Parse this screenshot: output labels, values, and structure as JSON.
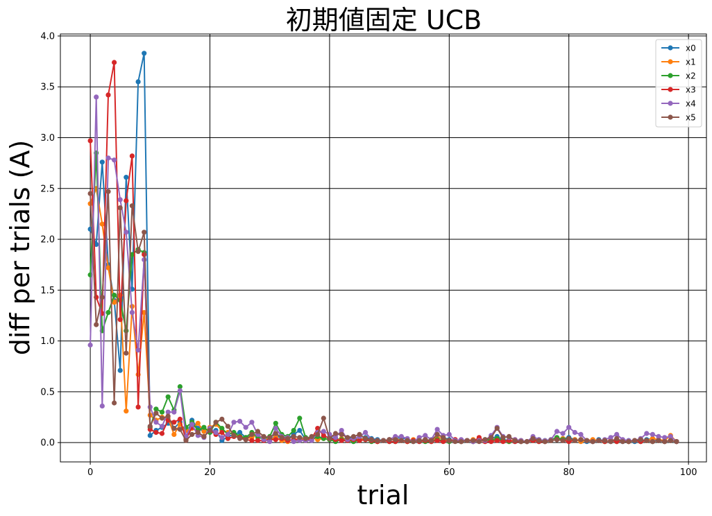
{
  "chart_data": {
    "type": "line",
    "title": "初期値固定 UCB",
    "xlabel": "trial",
    "ylabel": "diff  per  trials (A)",
    "xlim": [
      -5,
      103
    ],
    "ylim": [
      -0.19,
      4.02
    ],
    "xticks": [
      0,
      20,
      40,
      60,
      80,
      100
    ],
    "xtick_labels": [
      "0",
      "20",
      "40",
      "60",
      "80",
      "100"
    ],
    "yticks": [
      0.0,
      0.5,
      1.0,
      1.5,
      2.0,
      2.5,
      3.0,
      3.5,
      4.0
    ],
    "ytick_labels": [
      "0.0",
      "0.5",
      "1.0",
      "1.5",
      "2.0",
      "2.5",
      "3.0",
      "3.5",
      "4.0"
    ],
    "grid": true,
    "legend_position": "top-right",
    "marker": "circle",
    "series": [
      {
        "name": "x0",
        "color": "#1f77b4",
        "values": [
          2.1,
          1.95,
          2.76,
          1.75,
          1.4,
          0.71,
          2.61,
          1.51,
          3.55,
          3.83,
          0.07,
          0.12,
          0.15,
          0.19,
          0.14,
          0.2,
          0.05,
          0.22,
          0.14,
          0.11,
          0.1,
          0.12,
          0.02,
          0.06,
          0.08,
          0.1,
          0.05,
          0.06,
          0.07,
          0.04,
          0.03,
          0.06,
          0.05,
          0.04,
          0.08,
          0.12,
          0.03,
          0.05,
          0.04,
          0.06,
          0.05,
          0.04,
          0.03,
          0.05,
          0.04,
          0.03,
          0.05,
          0.04,
          0.03,
          0.02,
          0.03,
          0.04,
          0.05,
          0.03,
          0.02,
          0.01,
          0.03,
          0.02,
          0.04,
          0.05,
          0.03,
          0.02,
          0.01,
          0.02,
          0.01,
          0.02,
          0.03,
          0.04,
          0.06,
          0.03,
          0.02,
          0.01,
          0.02,
          0.01,
          0.02,
          0.03,
          0.01,
          0.02,
          0.03,
          0.04,
          0.05,
          0.03,
          0.02,
          0.01,
          0.02,
          0.03,
          0.02,
          0.01,
          0.02,
          0.01,
          0.02,
          0.01,
          0.02,
          0.03,
          0.04,
          0.02,
          0.01,
          0.02,
          0.01
        ]
      },
      {
        "name": "x1",
        "color": "#ff7f0e",
        "values": [
          2.35,
          2.5,
          2.15,
          1.72,
          1.38,
          1.45,
          0.31,
          1.34,
          0.67,
          1.28,
          0.27,
          0.22,
          0.25,
          0.24,
          0.08,
          0.18,
          0.12,
          0.14,
          0.19,
          0.11,
          0.15,
          0.18,
          0.12,
          0.1,
          0.08,
          0.06,
          0.04,
          0.05,
          0.08,
          0.04,
          0.03,
          0.05,
          0.02,
          0.01,
          0.03,
          0.04,
          0.02,
          0.05,
          0.03,
          0.04,
          0.03,
          0.02,
          0.04,
          0.03,
          0.02,
          0.03,
          0.04,
          0.02,
          0.01,
          0.02,
          0.03,
          0.04,
          0.02,
          0.01,
          0.03,
          0.02,
          0.03,
          0.02,
          0.05,
          0.04,
          0.02,
          0.03,
          0.01,
          0.02,
          0.03,
          0.02,
          0.01,
          0.03,
          0.04,
          0.02,
          0.01,
          0.03,
          0.02,
          0.01,
          0.03,
          0.02,
          0.01,
          0.02,
          0.03,
          0.04,
          0.02,
          0.03,
          0.01,
          0.02,
          0.03,
          0.02,
          0.01,
          0.02,
          0.03,
          0.02,
          0.01,
          0.02,
          0.03,
          0.02,
          0.04,
          0.03,
          0.02,
          0.07,
          0.01
        ]
      },
      {
        "name": "x2",
        "color": "#2ca02c",
        "values": [
          1.65,
          2.85,
          1.1,
          1.28,
          1.45,
          1.4,
          1.1,
          1.85,
          1.9,
          1.87,
          0.15,
          0.33,
          0.3,
          0.45,
          0.32,
          0.55,
          0.15,
          0.2,
          0.12,
          0.15,
          0.1,
          0.2,
          0.14,
          0.08,
          0.1,
          0.06,
          0.05,
          0.1,
          0.05,
          0.04,
          0.06,
          0.19,
          0.08,
          0.06,
          0.12,
          0.24,
          0.05,
          0.03,
          0.06,
          0.04,
          0.03,
          0.01,
          0.03,
          0.02,
          0.01,
          0.02,
          0.03,
          0.01,
          0.01,
          0.02,
          0.01,
          0.01,
          0.02,
          0.01,
          0.01,
          0.02,
          0.01,
          0.01,
          0.03,
          0.02,
          0.01,
          0.02,
          0.01,
          0.02,
          0.01,
          0.02,
          0.03,
          0.02,
          0.04,
          0.02,
          0.01,
          0.02,
          0.01,
          0.01,
          0.02,
          0.01,
          0.02,
          0.03,
          0.05,
          0.03,
          0.04,
          0.02,
          0.03,
          0.02,
          0.01,
          0.02,
          0.01,
          0.02,
          0.01,
          0.02,
          0.01,
          0.02,
          0.01,
          0.02,
          0.01,
          0.02,
          0.01,
          0.02,
          0.01
        ]
      },
      {
        "name": "x3",
        "color": "#d62728",
        "values": [
          2.97,
          1.43,
          1.27,
          3.42,
          3.74,
          1.21,
          2.38,
          2.82,
          0.35,
          1.85,
          0.13,
          0.1,
          0.09,
          0.22,
          0.2,
          0.23,
          0.03,
          0.15,
          0.1,
          0.06,
          0.12,
          0.08,
          0.1,
          0.04,
          0.06,
          0.05,
          0.03,
          0.02,
          0.02,
          0.02,
          0.03,
          0.03,
          0.04,
          0.02,
          0.03,
          0.03,
          0.02,
          0.04,
          0.14,
          0.07,
          0.04,
          0.03,
          0.02,
          0.02,
          0.03,
          0.02,
          0.03,
          0.02,
          0.01,
          0.02,
          0.01,
          0.01,
          0.02,
          0.01,
          0.02,
          0.01,
          0.02,
          0.01,
          0.02,
          0.01,
          0.02,
          0.03,
          0.01,
          0.02,
          0.01,
          0.05,
          0.01,
          0.01,
          0.02,
          0.01,
          0.02,
          0.01,
          0.01,
          0.01,
          0.02,
          0.01,
          0.01,
          0.02,
          0.03,
          0.02,
          0.01,
          0.02,
          0.03,
          0.02,
          0.01,
          0.02,
          0.01,
          0.02,
          0.01,
          0.02,
          0.01,
          0.02,
          0.01,
          0.02,
          0.01,
          0.02,
          0.01,
          0.02,
          0.01
        ]
      },
      {
        "name": "x4",
        "color": "#9467bd",
        "values": [
          0.96,
          3.4,
          0.36,
          2.8,
          2.78,
          2.39,
          2.07,
          1.28,
          0.91,
          1.8,
          0.35,
          0.2,
          0.16,
          0.3,
          0.3,
          0.51,
          0.06,
          0.18,
          0.07,
          0.05,
          0.14,
          0.1,
          0.05,
          0.08,
          0.2,
          0.21,
          0.15,
          0.2,
          0.08,
          0.03,
          0.01,
          0.14,
          0.06,
          0.05,
          0.01,
          0.02,
          0.02,
          0.02,
          0.1,
          0.11,
          0.08,
          0.05,
          0.12,
          0.03,
          0.04,
          0.06,
          0.1,
          0.03,
          0.02,
          0.02,
          0.03,
          0.06,
          0.06,
          0.04,
          0.01,
          0.05,
          0.07,
          0.03,
          0.13,
          0.07,
          0.08,
          0.02,
          0.03,
          0.02,
          0.01,
          0.02,
          0.02,
          0.07,
          0.15,
          0.06,
          0.05,
          0.03,
          0.02,
          0.01,
          0.06,
          0.03,
          0.02,
          0.03,
          0.11,
          0.09,
          0.15,
          0.1,
          0.08,
          0.02,
          0.01,
          0.02,
          0.03,
          0.05,
          0.08,
          0.03,
          0.02,
          0.02,
          0.04,
          0.09,
          0.08,
          0.06,
          0.05,
          0.06,
          0.01
        ]
      },
      {
        "name": "x5",
        "color": "#8c564b",
        "values": [
          2.45,
          1.16,
          1.43,
          2.47,
          0.39,
          2.31,
          0.88,
          2.33,
          1.88,
          2.07,
          0.16,
          0.29,
          0.24,
          0.26,
          0.14,
          0.13,
          0.02,
          0.08,
          0.1,
          0.06,
          0.12,
          0.2,
          0.23,
          0.16,
          0.07,
          0.04,
          0.03,
          0.08,
          0.11,
          0.06,
          0.05,
          0.09,
          0.05,
          0.04,
          0.06,
          0.05,
          0.04,
          0.06,
          0.08,
          0.24,
          0.04,
          0.09,
          0.08,
          0.05,
          0.06,
          0.08,
          0.04,
          0.03,
          0.02,
          0.02,
          0.03,
          0.03,
          0.02,
          0.02,
          0.01,
          0.02,
          0.03,
          0.02,
          0.08,
          0.05,
          0.02,
          0.01,
          0.01,
          0.02,
          0.02,
          0.01,
          0.03,
          0.05,
          0.14,
          0.05,
          0.06,
          0.02,
          0.01,
          0.01,
          0.04,
          0.02,
          0.01,
          0.02,
          0.03,
          0.02,
          0.04,
          0.02,
          0.03,
          0.02,
          0.01,
          0.02,
          0.02,
          0.01,
          0.04,
          0.01,
          0.01,
          0.02,
          0.03,
          0.02,
          0.01,
          0.02,
          0.01,
          0.02,
          0.01
        ]
      }
    ]
  }
}
